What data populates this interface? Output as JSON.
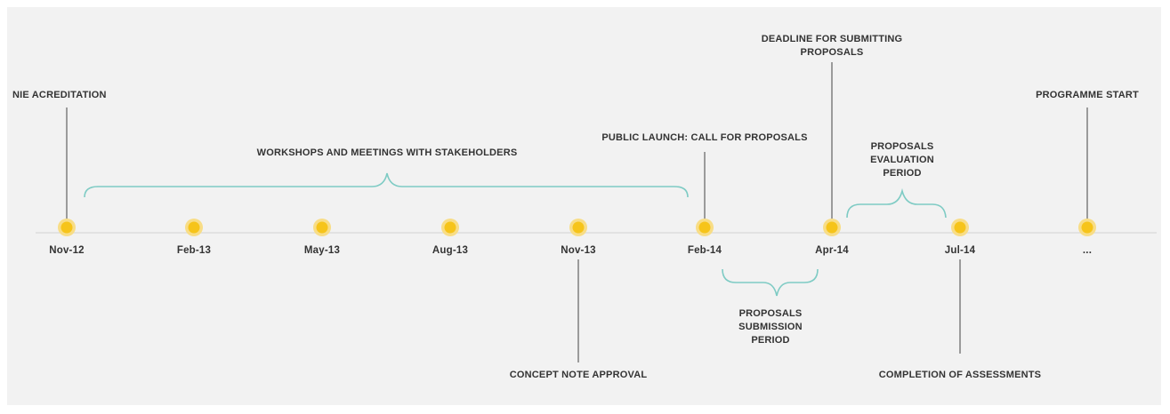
{
  "colors": {
    "background": "#f2f2f2",
    "axis": "#e2e2e2",
    "milestone_fill": "#f6c41a",
    "milestone_ring": "#f8dd86",
    "brace": "#7ecbc4",
    "connector": "#444444",
    "text": "#333333"
  },
  "dates": [
    "Nov-12",
    "Feb-13",
    "May-13",
    "Aug-13",
    "Nov-13",
    "Feb-14",
    "Apr-14",
    "Jul-14",
    "..."
  ],
  "events": {
    "nie_accreditation": "NIE ACREDITATION",
    "deadline_line1": "DEADLINE FOR SUBMITTING",
    "deadline_line2": "PROPOSALS",
    "public_launch": "PUBLIC LAUNCH: CALL FOR PROPOSALS",
    "programme_start": "PROGRAMME START",
    "concept_note": "CONCEPT NOTE APPROVAL",
    "completion": "COMPLETION OF ASSESSMENTS"
  },
  "periods": {
    "workshops": "WORKSHOPS AND MEETINGS WITH STAKEHOLDERS",
    "evaluation_line1": "PROPOSALS",
    "evaluation_line2": "EVALUATION",
    "evaluation_line3": "PERIOD",
    "submission_line1": "PROPOSALS",
    "submission_line2": "SUBMISSION",
    "submission_line3": "PERIOD"
  }
}
